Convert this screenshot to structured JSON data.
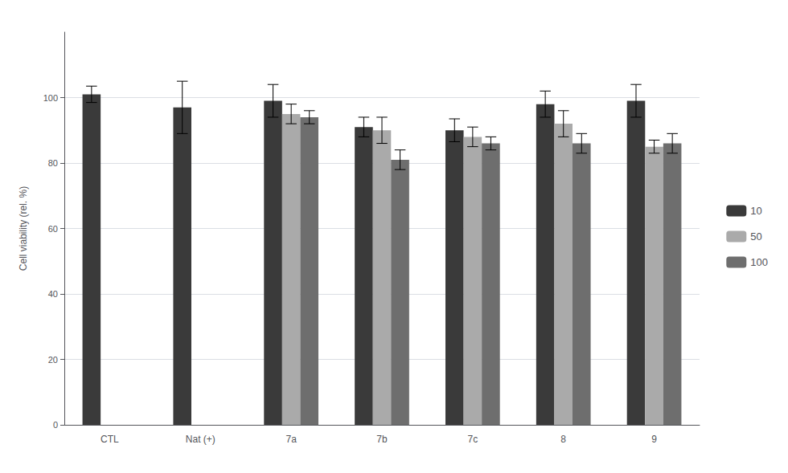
{
  "chart_data": {
    "type": "bar",
    "categories": [
      "CTL",
      "Nat (+)",
      "7a",
      "7b",
      "7c",
      "8",
      "9"
    ],
    "series": [
      {
        "name": "10",
        "color": "#3a3a3a",
        "values": [
          101,
          97,
          99,
          91,
          90,
          98,
          99
        ],
        "errors": [
          2.5,
          8,
          5,
          3,
          3.5,
          4,
          5
        ]
      },
      {
        "name": "50",
        "color": "#aaaaaa",
        "values": [
          null,
          null,
          95,
          90,
          88,
          92,
          85
        ],
        "errors": [
          null,
          null,
          3,
          4,
          3,
          4,
          2
        ]
      },
      {
        "name": "100",
        "color": "#6e6e6e",
        "values": [
          null,
          null,
          94,
          81,
          86,
          86,
          86
        ],
        "errors": [
          null,
          null,
          2,
          3,
          2,
          3,
          3
        ]
      }
    ],
    "ylabel": "Cell viability (rel. %)",
    "ylim": [
      0,
      120
    ],
    "yticks": [
      0,
      20,
      40,
      60,
      80,
      100
    ],
    "grid": true,
    "legend": "right"
  }
}
